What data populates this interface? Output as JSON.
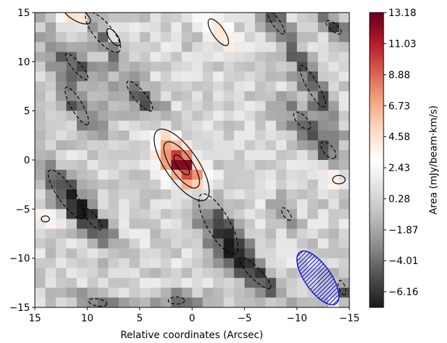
{
  "chart_data": {
    "type": "heatmap",
    "title": "",
    "xlabel": "Relative coordinates (Arcsec)",
    "ylabel": "",
    "xlim": [
      15,
      -15
    ],
    "ylim": [
      -15,
      15
    ],
    "x_ticks": [
      15,
      10,
      5,
      0,
      -5,
      -10,
      -15
    ],
    "x_tick_labels": [
      "15",
      "10",
      "5",
      "0",
      "−5",
      "−10",
      "−15"
    ],
    "y_ticks": [
      15,
      10,
      5,
      0,
      -5,
      -10,
      -15
    ],
    "y_tick_labels": [
      "15",
      "10",
      "5",
      "0",
      "−5",
      "−10",
      "−15"
    ],
    "colormap": "RdGy_r",
    "colorbar": {
      "label": "Area (mJy/beam·km/s)",
      "vmin": -7.24,
      "vmax": 13.18,
      "ticks": [
        13.18,
        11.03,
        8.88,
        6.73,
        4.58,
        2.43,
        0.28,
        -1.87,
        -4.01,
        -6.16
      ],
      "tick_labels": [
        "13.18",
        "11.03",
        "8.88",
        "6.73",
        "4.58",
        "2.43",
        "0.28",
        "−1.87",
        "−4.01",
        "−6.16"
      ]
    },
    "grid": false,
    "peak": {
      "x": 1.0,
      "y": -0.5,
      "value": 13.18
    },
    "emission_major_axis_pa_deg": 55,
    "beam": {
      "x": -12.0,
      "y": -12.0,
      "major_arcsec": 6.0,
      "minor_arcsec": 2.5,
      "pa_deg": 55,
      "color": "#0000dd"
    },
    "contour_levels": [
      -4.0,
      4.0,
      8.0,
      12.0
    ],
    "contour_style": {
      "negative": "dashed",
      "positive": "solid"
    },
    "features": [
      {
        "type": "positive",
        "x": 1.0,
        "y": -0.5,
        "value": 13.18,
        "sigma_major": 2.6,
        "sigma_minor": 1.0,
        "pa_deg": 55
      },
      {
        "type": "positive",
        "x": -2.5,
        "y": 13.0,
        "value": 6.2,
        "sigma_major": 1.6,
        "sigma_minor": 0.6,
        "pa_deg": 55
      },
      {
        "type": "positive",
        "x": 11.0,
        "y": 14.8,
        "value": 6.5,
        "sigma_major": 1.5,
        "sigma_minor": 0.6,
        "pa_deg": 30
      },
      {
        "type": "positive",
        "x": 7.5,
        "y": 12.5,
        "value": 5.5,
        "sigma_major": 1.2,
        "sigma_minor": 0.5,
        "pa_deg": 55
      },
      {
        "type": "positive",
        "x": 14.0,
        "y": -6.0,
        "value": 4.5,
        "sigma_major": 0.8,
        "sigma_minor": 0.6,
        "pa_deg": 0
      },
      {
        "type": "positive",
        "x": -14.0,
        "y": -2.0,
        "value": 5.0,
        "sigma_major": 0.9,
        "sigma_minor": 0.6,
        "pa_deg": 0
      },
      {
        "type": "negative",
        "x": 8.5,
        "y": 13.0,
        "value": -7.24,
        "sigma_major": 2.2,
        "sigma_minor": 0.8,
        "pa_deg": 50
      },
      {
        "type": "negative",
        "x": -8.0,
        "y": 14.0,
        "value": -4.6,
        "sigma_major": 2.5,
        "sigma_minor": 0.7,
        "pa_deg": 55
      },
      {
        "type": "negative",
        "x": -13.5,
        "y": 13.5,
        "value": -4.8,
        "sigma_major": 1.5,
        "sigma_minor": 0.6,
        "pa_deg": 40
      },
      {
        "type": "negative",
        "x": 11.0,
        "y": 9.5,
        "value": -4.6,
        "sigma_major": 3.0,
        "sigma_minor": 0.8,
        "pa_deg": 50
      },
      {
        "type": "negative",
        "x": 11.0,
        "y": 5.5,
        "value": -4.8,
        "sigma_major": 3.4,
        "sigma_minor": 0.9,
        "pa_deg": 60
      },
      {
        "type": "negative",
        "x": 5.0,
        "y": 6.5,
        "value": -4.8,
        "sigma_major": 3.0,
        "sigma_minor": 0.9,
        "pa_deg": 50
      },
      {
        "type": "negative",
        "x": -11.5,
        "y": 7.5,
        "value": -5.0,
        "sigma_major": 3.4,
        "sigma_minor": 0.8,
        "pa_deg": 60
      },
      {
        "type": "negative",
        "x": -10.5,
        "y": 4.0,
        "value": -4.6,
        "sigma_major": 2.0,
        "sigma_minor": 0.9,
        "pa_deg": 45
      },
      {
        "type": "negative",
        "x": -13.0,
        "y": 1.0,
        "value": -4.6,
        "sigma_major": 1.8,
        "sigma_minor": 0.9,
        "pa_deg": 50
      },
      {
        "type": "negative",
        "x": 12.0,
        "y": -3.5,
        "value": -5.5,
        "sigma_major": 3.5,
        "sigma_minor": 1.0,
        "pa_deg": 55
      },
      {
        "type": "negative",
        "x": 9.5,
        "y": -6.0,
        "value": -4.6,
        "sigma_major": 2.5,
        "sigma_minor": 0.8,
        "pa_deg": 50
      },
      {
        "type": "negative",
        "x": -2.5,
        "y": -6.5,
        "value": -6.0,
        "sigma_major": 3.6,
        "sigma_minor": 1.2,
        "pa_deg": 60
      },
      {
        "type": "negative",
        "x": -9.0,
        "y": -5.5,
        "value": -4.6,
        "sigma_major": 1.3,
        "sigma_minor": 0.6,
        "pa_deg": 55
      },
      {
        "type": "negative",
        "x": -6.0,
        "y": -11.5,
        "value": -4.8,
        "sigma_major": 3.4,
        "sigma_minor": 0.9,
        "pa_deg": 45
      },
      {
        "type": "negative",
        "x": 9.0,
        "y": -14.5,
        "value": -4.5,
        "sigma_major": 1.8,
        "sigma_minor": 0.7,
        "pa_deg": 10
      },
      {
        "type": "negative",
        "x": 1.5,
        "y": -14.3,
        "value": -4.5,
        "sigma_major": 1.6,
        "sigma_minor": 0.7,
        "pa_deg": 0
      },
      {
        "type": "negative",
        "x": -14.3,
        "y": -13.0,
        "value": -4.8,
        "sigma_major": 1.2,
        "sigma_minor": 0.5,
        "pa_deg": 70
      }
    ]
  }
}
